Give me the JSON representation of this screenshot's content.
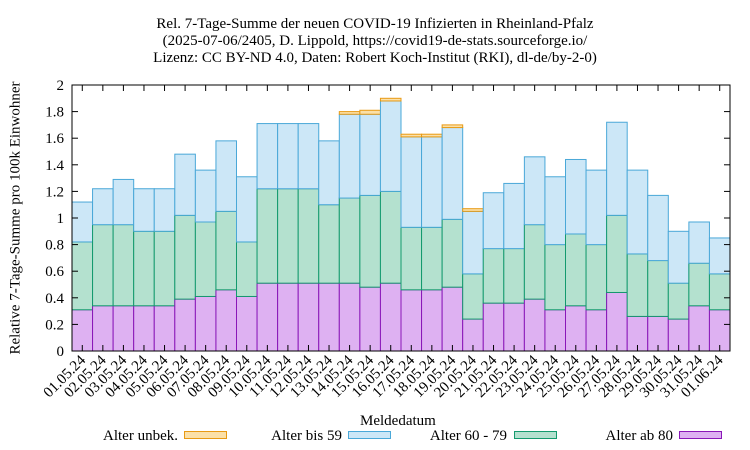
{
  "chart_data": {
    "type": "bar",
    "stacked": true,
    "title_lines": [
      "Rel. 7-Tage-Summe der neuen COVID-19 Infizierten in Rheinland-Pfalz",
      "(2025-07-06/2405, D. Lippold, https://covid19-de-stats.sourceforge.io/",
      "Lizenz: CC BY-ND 4.0, Daten: Robert Koch-Institut (RKI), dl-de/by-2-0)"
    ],
    "xlabel": "Meldedatum",
    "ylabel": "Relative 7-Tage-Summe pro 100k Einwohner",
    "ylim": [
      0,
      2
    ],
    "yticks": [
      "0",
      "0.2",
      "0.4",
      "0.6",
      "0.8",
      "1",
      "1.2",
      "1.4",
      "1.6",
      "1.8",
      "2"
    ],
    "categories": [
      "01.05.24",
      "02.05.24",
      "03.05.24",
      "04.05.24",
      "05.05.24",
      "06.05.24",
      "07.05.24",
      "08.05.24",
      "09.05.24",
      "10.05.24",
      "11.05.24",
      "12.05.24",
      "13.05.24",
      "14.05.24",
      "15.05.24",
      "16.05.24",
      "17.05.24",
      "18.05.24",
      "19.05.24",
      "20.05.24",
      "21.05.24",
      "22.05.24",
      "23.05.24",
      "24.05.24",
      "25.05.24",
      "26.05.24",
      "27.05.24",
      "28.05.24",
      "29.05.24",
      "30.05.24",
      "31.05.24",
      "01.06.24"
    ],
    "series": [
      {
        "name": "Alter ab 80",
        "fill": "#deb1f2",
        "stroke": "#8a17b8",
        "values": [
          0.31,
          0.34,
          0.34,
          0.34,
          0.34,
          0.39,
          0.41,
          0.46,
          0.41,
          0.51,
          0.51,
          0.51,
          0.51,
          0.51,
          0.48,
          0.51,
          0.46,
          0.46,
          0.48,
          0.24,
          0.36,
          0.36,
          0.39,
          0.31,
          0.34,
          0.31,
          0.44,
          0.26,
          0.26,
          0.24,
          0.34,
          0.31
        ]
      },
      {
        "name": "Alter 60 - 79",
        "fill": "#b4e1cf",
        "stroke": "#149a6e",
        "values": [
          0.51,
          0.61,
          0.61,
          0.56,
          0.56,
          0.63,
          0.56,
          0.59,
          0.41,
          0.71,
          0.71,
          0.71,
          0.59,
          0.64,
          0.69,
          0.69,
          0.47,
          0.47,
          0.51,
          0.34,
          0.41,
          0.41,
          0.56,
          0.49,
          0.54,
          0.49,
          0.58,
          0.47,
          0.42,
          0.27,
          0.32,
          0.27
        ]
      },
      {
        "name": "Alter bis 59",
        "fill": "#cce7f7",
        "stroke": "#4aa8d8",
        "values": [
          0.3,
          0.27,
          0.34,
          0.32,
          0.32,
          0.46,
          0.39,
          0.53,
          0.49,
          0.49,
          0.49,
          0.49,
          0.48,
          0.63,
          0.61,
          0.68,
          0.68,
          0.68,
          0.69,
          0.47,
          0.42,
          0.49,
          0.51,
          0.51,
          0.56,
          0.56,
          0.7,
          0.63,
          0.49,
          0.39,
          0.31,
          0.27
        ]
      },
      {
        "name": "Alter unbek.",
        "fill": "#fbe0a8",
        "stroke": "#e89a14",
        "values": [
          0,
          0,
          0,
          0,
          0,
          0,
          0,
          0,
          0,
          0,
          0,
          0,
          0,
          0.02,
          0.03,
          0.02,
          0.02,
          0.02,
          0.02,
          0.02,
          0,
          0,
          0,
          0,
          0,
          0,
          0,
          0,
          0,
          0,
          0,
          0
        ]
      }
    ],
    "legend_order": [
      "Alter unbek.",
      "Alter bis 59",
      "Alter 60 - 79",
      "Alter ab 80"
    ],
    "legend_position": "bottom",
    "grid": false
  }
}
